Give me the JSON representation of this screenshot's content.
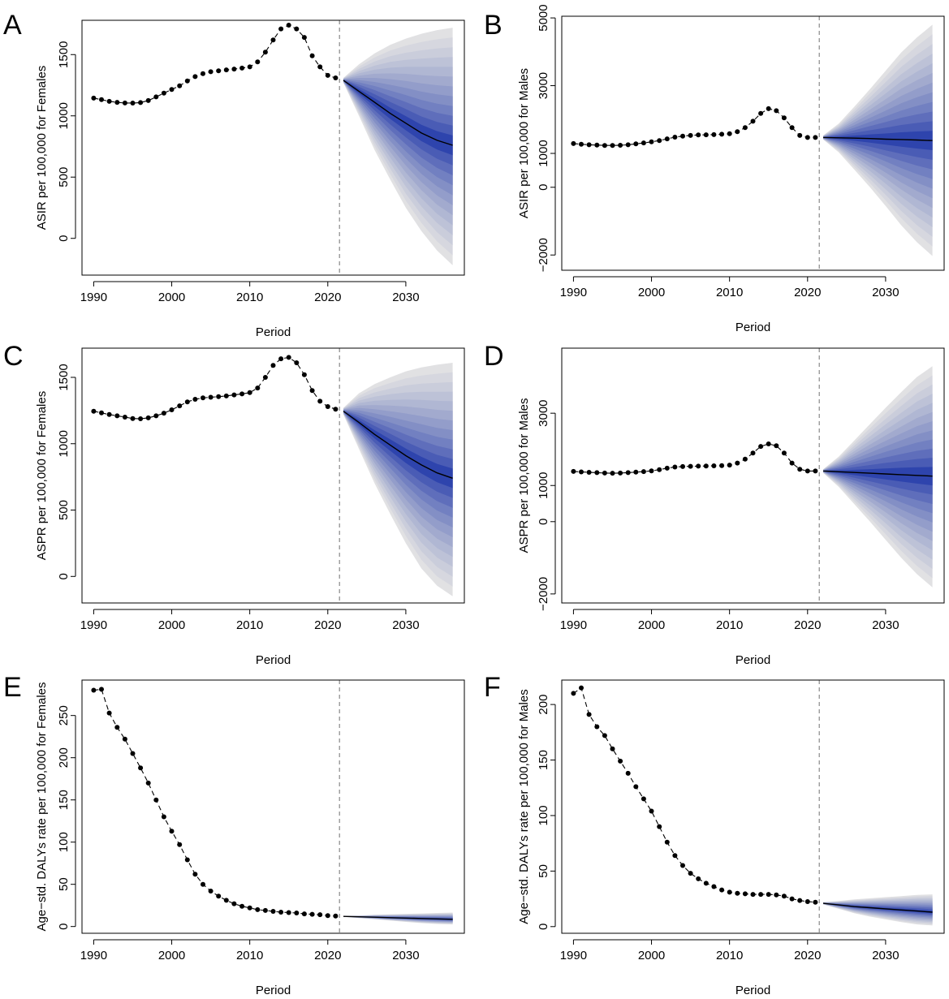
{
  "figure": {
    "background": "#ffffff",
    "band_colors": [
      "#e1e1e3",
      "#d6d7df",
      "#cacddb",
      "#bdc2d7",
      "#b0b7d3",
      "#a2aace",
      "#939dca",
      "#838fc5",
      "#7280c1",
      "#5f6ebb",
      "#4a5cb5",
      "#2e44ad"
    ],
    "median_color": "#000000",
    "vline_color": "#888888"
  },
  "chart_data": [
    {
      "panel": "A",
      "type": "line",
      "xlabel": "Period",
      "ylabel": "ASIR per 100,000 for Females",
      "xlim": [
        1988.5,
        2037.5
      ],
      "ylim": [
        -300,
        1780
      ],
      "xticks": [
        1990,
        2000,
        2010,
        2020,
        2030
      ],
      "yticks": [
        0,
        500,
        1000,
        1500
      ],
      "ytick_labels": [
        "0",
        "500",
        "1000",
        "1500"
      ],
      "forecast_start": 2021.5,
      "observed": {
        "x": [
          1990,
          1991,
          1992,
          1993,
          1994,
          1995,
          1996,
          1997,
          1998,
          1999,
          2000,
          2001,
          2002,
          2003,
          2004,
          2005,
          2006,
          2007,
          2008,
          2009,
          2010,
          2011,
          2012,
          2013,
          2014,
          2015,
          2016,
          2017,
          2018,
          2019,
          2020,
          2021
        ],
        "y": [
          1145,
          1132,
          1118,
          1110,
          1105,
          1104,
          1108,
          1125,
          1155,
          1185,
          1215,
          1245,
          1285,
          1320,
          1345,
          1360,
          1368,
          1375,
          1382,
          1390,
          1400,
          1440,
          1520,
          1620,
          1710,
          1740,
          1710,
          1640,
          1490,
          1400,
          1330,
          1310
        ]
      },
      "forecast": {
        "x": [
          2022,
          2024,
          2026,
          2028,
          2030,
          2032,
          2034,
          2036
        ],
        "median": [
          1290,
          1200,
          1110,
          1020,
          940,
          860,
          800,
          760
        ],
        "upper": [
          1310,
          1420,
          1510,
          1580,
          1630,
          1670,
          1700,
          1720
        ],
        "lower": [
          1270,
          1000,
          720,
          480,
          250,
          60,
          -100,
          -220
        ]
      }
    },
    {
      "panel": "B",
      "type": "line",
      "xlabel": "Period",
      "ylabel": "ASIR per 100,000 for Males",
      "xlim": [
        1988.5,
        2037.5
      ],
      "ylim": [
        -2450,
        5050
      ],
      "xticks": [
        1990,
        2000,
        2010,
        2020,
        2030
      ],
      "yticks": [
        -2000,
        0,
        1000,
        3000,
        5000
      ],
      "ytick_labels": [
        "−2000",
        "0",
        "1000",
        "3000",
        "5000"
      ],
      "forecast_start": 2021.5,
      "observed": {
        "x": [
          1990,
          1991,
          1992,
          1993,
          1994,
          1995,
          1996,
          1997,
          1998,
          1999,
          2000,
          2001,
          2002,
          2003,
          2004,
          2005,
          2006,
          2007,
          2008,
          2009,
          2010,
          2011,
          2012,
          2013,
          2014,
          2015,
          2016,
          2017,
          2018,
          2019,
          2020,
          2021
        ],
        "y": [
          1290,
          1270,
          1255,
          1245,
          1235,
          1235,
          1240,
          1255,
          1280,
          1310,
          1340,
          1380,
          1430,
          1480,
          1510,
          1530,
          1545,
          1550,
          1555,
          1565,
          1580,
          1640,
          1760,
          1950,
          2180,
          2320,
          2260,
          2050,
          1760,
          1530,
          1470,
          1470
        ]
      },
      "forecast": {
        "x": [
          2022,
          2024,
          2026,
          2028,
          2030,
          2032,
          2034,
          2036
        ],
        "median": [
          1470,
          1460,
          1450,
          1440,
          1420,
          1410,
          1395,
          1380
        ],
        "upper": [
          1530,
          1880,
          2380,
          2900,
          3440,
          3980,
          4420,
          4800
        ],
        "lower": [
          1410,
          1030,
          520,
          0,
          -550,
          -1120,
          -1620,
          -2030
        ]
      }
    },
    {
      "panel": "C",
      "type": "line",
      "xlabel": "Period",
      "ylabel": "ASPR per 100,000 for Females",
      "xlim": [
        1988.5,
        2037.5
      ],
      "ylim": [
        -200,
        1720
      ],
      "xticks": [
        1990,
        2000,
        2010,
        2020,
        2030
      ],
      "yticks": [
        0,
        500,
        1000,
        1500
      ],
      "ytick_labels": [
        "0",
        "500",
        "1000",
        "1500"
      ],
      "forecast_start": 2021.5,
      "observed": {
        "x": [
          1990,
          1991,
          1992,
          1993,
          1994,
          1995,
          1996,
          1997,
          1998,
          1999,
          2000,
          2001,
          2002,
          2003,
          2004,
          2005,
          2006,
          2007,
          2008,
          2009,
          2010,
          2011,
          2012,
          2013,
          2014,
          2015,
          2016,
          2017,
          2018,
          2019,
          2020,
          2021
        ],
        "y": [
          1245,
          1232,
          1220,
          1210,
          1200,
          1190,
          1188,
          1195,
          1210,
          1230,
          1255,
          1285,
          1315,
          1335,
          1345,
          1350,
          1355,
          1360,
          1368,
          1375,
          1385,
          1420,
          1500,
          1590,
          1640,
          1650,
          1610,
          1520,
          1400,
          1320,
          1280,
          1260
        ]
      },
      "forecast": {
        "x": [
          2022,
          2024,
          2026,
          2028,
          2030,
          2032,
          2034,
          2036
        ],
        "median": [
          1245,
          1160,
          1070,
          990,
          910,
          840,
          780,
          740
        ],
        "upper": [
          1270,
          1380,
          1450,
          1500,
          1545,
          1575,
          1595,
          1610
        ],
        "lower": [
          1220,
          960,
          700,
          470,
          250,
          60,
          -70,
          -150
        ]
      }
    },
    {
      "panel": "D",
      "type": "line",
      "xlabel": "Period",
      "ylabel": "ASPR per 100,000 for Males",
      "xlim": [
        1988.5,
        2037.5
      ],
      "ylim": [
        -2250,
        4800
      ],
      "xticks": [
        1990,
        2000,
        2010,
        2020,
        2030
      ],
      "yticks": [
        -2000,
        0,
        1000,
        3000
      ],
      "ytick_labels": [
        "−2000",
        "0",
        "1000",
        "3000"
      ],
      "forecast_start": 2021.5,
      "observed": {
        "x": [
          1990,
          1991,
          1992,
          1993,
          1994,
          1995,
          1996,
          1997,
          1998,
          1999,
          2000,
          2001,
          2002,
          2003,
          2004,
          2005,
          2006,
          2007,
          2008,
          2009,
          2010,
          2011,
          2012,
          2013,
          2014,
          2015,
          2016,
          2017,
          2018,
          2019,
          2020,
          2021
        ],
        "y": [
          1390,
          1375,
          1365,
          1355,
          1345,
          1340,
          1345,
          1355,
          1370,
          1385,
          1405,
          1440,
          1480,
          1510,
          1525,
          1530,
          1535,
          1540,
          1545,
          1550,
          1565,
          1620,
          1730,
          1900,
          2080,
          2150,
          2100,
          1900,
          1620,
          1450,
          1400,
          1400
        ]
      },
      "forecast": {
        "x": [
          2022,
          2024,
          2026,
          2028,
          2030,
          2032,
          2034,
          2036
        ],
        "median": [
          1400,
          1380,
          1360,
          1340,
          1320,
          1300,
          1280,
          1260
        ],
        "upper": [
          1450,
          1800,
          2250,
          2700,
          3150,
          3580,
          4000,
          4300
        ],
        "lower": [
          1350,
          960,
          480,
          0,
          -500,
          -1000,
          -1450,
          -1820
        ]
      }
    },
    {
      "panel": "E",
      "type": "line",
      "xlabel": "Period",
      "ylabel": "Age−std. DALYs rate per 100,000 for Females",
      "xlim": [
        1988.5,
        2037.5
      ],
      "ylim": [
        -8,
        292
      ],
      "xticks": [
        1990,
        2000,
        2010,
        2020,
        2030
      ],
      "yticks": [
        0,
        50,
        100,
        150,
        200,
        250
      ],
      "ytick_labels": [
        "0",
        "50",
        "100",
        "150",
        "200",
        "250"
      ],
      "forecast_start": 2021.5,
      "observed": {
        "x": [
          1990,
          1991,
          1992,
          1993,
          1994,
          1995,
          1996,
          1997,
          1998,
          1999,
          2000,
          2001,
          2002,
          2003,
          2004,
          2005,
          2006,
          2007,
          2008,
          2009,
          2010,
          2011,
          2012,
          2013,
          2014,
          2015,
          2016,
          2017,
          2018,
          2019,
          2020,
          2021
        ],
        "y": [
          280,
          281,
          253,
          236,
          222,
          205,
          188,
          170,
          150,
          130,
          113,
          97,
          79,
          62,
          50,
          42,
          36,
          31,
          27,
          24,
          22,
          20,
          19,
          18,
          17,
          16.5,
          16,
          15,
          14.5,
          14,
          13,
          12.5
        ]
      },
      "forecast": {
        "x": [
          2022,
          2024,
          2026,
          2028,
          2030,
          2032,
          2034,
          2036
        ],
        "median": [
          12,
          11.5,
          11,
          10.5,
          10,
          9.5,
          9,
          8.5
        ],
        "upper": [
          12.5,
          13,
          14,
          14.5,
          15,
          15.5,
          16,
          16.5
        ],
        "lower": [
          11.5,
          10,
          8.5,
          7,
          5.5,
          4,
          3,
          2.5
        ]
      }
    },
    {
      "panel": "F",
      "type": "line",
      "xlabel": "Period",
      "ylabel": "Age−std. DALYs rate per 100,000 for Males",
      "xlim": [
        1988.5,
        2037.5
      ],
      "ylim": [
        -6,
        222
      ],
      "xticks": [
        1990,
        2000,
        2010,
        2020,
        2030
      ],
      "yticks": [
        0,
        50,
        100,
        150,
        200
      ],
      "ytick_labels": [
        "0",
        "50",
        "100",
        "150",
        "200"
      ],
      "forecast_start": 2021.5,
      "observed": {
        "x": [
          1990,
          1991,
          1992,
          1993,
          1994,
          1995,
          1996,
          1997,
          1998,
          1999,
          2000,
          2001,
          2002,
          2003,
          2004,
          2005,
          2006,
          2007,
          2008,
          2009,
          2010,
          2011,
          2012,
          2013,
          2014,
          2015,
          2016,
          2017,
          2018,
          2019,
          2020,
          2021
        ],
        "y": [
          210,
          215,
          191,
          180,
          172,
          160,
          149,
          138,
          126,
          115,
          104,
          90,
          76,
          64,
          55,
          48,
          43,
          39,
          36,
          33,
          31,
          30,
          29.5,
          29,
          29,
          29,
          28.5,
          27.5,
          25,
          23.5,
          22.5,
          22
        ]
      },
      "forecast": {
        "x": [
          2022,
          2024,
          2026,
          2028,
          2030,
          2032,
          2034,
          2036
        ],
        "median": [
          21,
          19.5,
          18,
          17,
          16,
          15,
          14,
          13
        ],
        "upper": [
          22,
          23,
          24.5,
          25.5,
          26.5,
          27.5,
          28.5,
          29
        ],
        "lower": [
          20,
          16,
          12,
          9,
          6.5,
          4,
          2,
          1
        ]
      }
    }
  ]
}
